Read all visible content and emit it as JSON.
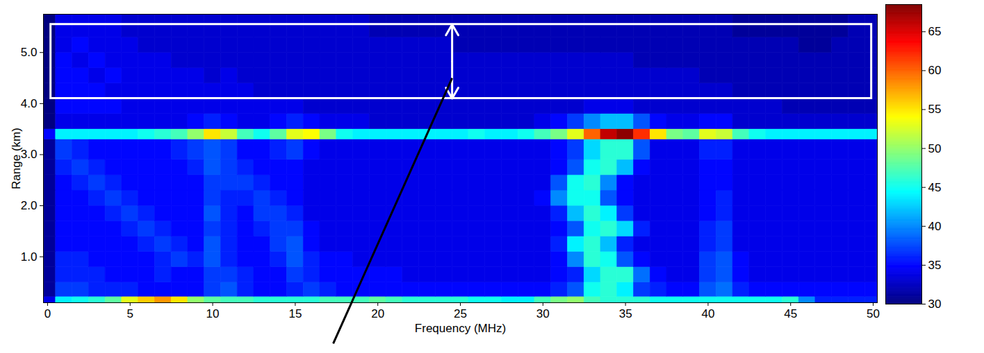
{
  "chart_data": {
    "type": "heatmap",
    "x_label": "Frequency (MHz)",
    "y_label": "Range (km)",
    "xlim": [
      -0.25,
      50.25
    ],
    "xticks": [
      0,
      5,
      10,
      15,
      20,
      25,
      30,
      35,
      40,
      45,
      50
    ],
    "ylim": [
      0.1,
      5.75
    ],
    "yticks": [
      1,
      2,
      3,
      4,
      5
    ],
    "x": [
      0,
      1,
      2,
      3,
      4,
      5,
      6,
      7,
      8,
      9,
      10,
      11,
      12,
      13,
      14,
      15,
      16,
      17,
      18,
      19,
      20,
      21,
      22,
      23,
      24,
      25,
      26,
      27,
      28,
      29,
      30,
      31,
      32,
      33,
      34,
      35,
      36,
      37,
      38,
      39,
      40,
      41,
      42,
      43,
      44,
      45,
      46,
      47,
      48,
      49,
      50
    ],
    "y_bins": [
      0.1,
      0.22,
      0.5,
      0.8,
      1.1,
      1.4,
      1.7,
      2.0,
      2.3,
      2.6,
      2.9,
      3.3,
      3.5,
      3.8,
      4.1,
      4.4,
      4.7,
      5.0,
      5.3,
      5.75
    ],
    "cells": [
      [
        34,
        44,
        45,
        46,
        48,
        53,
        56,
        58,
        55,
        50,
        48,
        47,
        47,
        46,
        46,
        46,
        46,
        47,
        47,
        47,
        48,
        47,
        46,
        46,
        46,
        46,
        45,
        45,
        44,
        44,
        47,
        49,
        50,
        47,
        46,
        46,
        46,
        45,
        45,
        45,
        45,
        45,
        45,
        45,
        45,
        46,
        40,
        36,
        36,
        36,
        36
      ],
      [
        31,
        37,
        37,
        36,
        36,
        36,
        35,
        35,
        35,
        35,
        37,
        38,
        36,
        35,
        35,
        36,
        37,
        36,
        35,
        35,
        35,
        35,
        35,
        35,
        35,
        35,
        35,
        35,
        35,
        35,
        35,
        36,
        38,
        45,
        46,
        44,
        37,
        36,
        35,
        35,
        38,
        39,
        36,
        35,
        35,
        35,
        35,
        35,
        35,
        35,
        35
      ],
      [
        31,
        36,
        36,
        36,
        35,
        35,
        35,
        36,
        35,
        35,
        37,
        37,
        36,
        35,
        35,
        37,
        36,
        35,
        35,
        35,
        35,
        35,
        34,
        34,
        34,
        34,
        34,
        34,
        34,
        34,
        34,
        35,
        36,
        43,
        46,
        46,
        39,
        35,
        34,
        34,
        37,
        38,
        35,
        34,
        34,
        34,
        34,
        34,
        34,
        34,
        34
      ],
      [
        31,
        36,
        36,
        35,
        35,
        35,
        35,
        36,
        37,
        36,
        38,
        36,
        35,
        35,
        36,
        38,
        36,
        35,
        35,
        34,
        34,
        34,
        34,
        34,
        34,
        34,
        34,
        34,
        34,
        34,
        34,
        35,
        40,
        46,
        45,
        38,
        35,
        34,
        34,
        34,
        37,
        38,
        35,
        34,
        34,
        34,
        34,
        34,
        34,
        34,
        34
      ],
      [
        31,
        35,
        35,
        35,
        35,
        35,
        36,
        37,
        36,
        35,
        38,
        36,
        35,
        35,
        37,
        38,
        35,
        34,
        34,
        34,
        34,
        34,
        34,
        34,
        34,
        34,
        34,
        34,
        34,
        34,
        34,
        36,
        44,
        46,
        42,
        36,
        34,
        34,
        34,
        34,
        36,
        37,
        34,
        34,
        34,
        34,
        34,
        34,
        34,
        34,
        34
      ],
      [
        31,
        35,
        35,
        35,
        35,
        36,
        37,
        36,
        35,
        35,
        37,
        36,
        35,
        36,
        37,
        37,
        35,
        34,
        34,
        34,
        34,
        34,
        34,
        34,
        34,
        34,
        34,
        34,
        34,
        34,
        34,
        35,
        38,
        45,
        46,
        43,
        36,
        34,
        34,
        34,
        36,
        37,
        34,
        34,
        34,
        34,
        34,
        34,
        34,
        34,
        34
      ],
      [
        31,
        35,
        35,
        35,
        36,
        37,
        36,
        35,
        35,
        35,
        38,
        36,
        35,
        37,
        37,
        36,
        34,
        34,
        34,
        34,
        34,
        34,
        34,
        34,
        34,
        34,
        34,
        34,
        34,
        34,
        34,
        36,
        42,
        46,
        44,
        37,
        34,
        34,
        34,
        34,
        35,
        36,
        34,
        34,
        34,
        34,
        34,
        34,
        34,
        34,
        34
      ],
      [
        31,
        35,
        35,
        36,
        37,
        36,
        35,
        35,
        35,
        35,
        37,
        36,
        36,
        37,
        36,
        35,
        34,
        34,
        34,
        34,
        34,
        34,
        34,
        34,
        34,
        34,
        34,
        34,
        34,
        34,
        35,
        40,
        45,
        45,
        38,
        35,
        34,
        34,
        34,
        34,
        35,
        36,
        34,
        34,
        34,
        34,
        34,
        34,
        34,
        34,
        34
      ],
      [
        31,
        35,
        36,
        37,
        36,
        35,
        35,
        35,
        35,
        35,
        37,
        37,
        37,
        36,
        35,
        35,
        34,
        34,
        34,
        34,
        34,
        34,
        34,
        34,
        34,
        34,
        34,
        34,
        34,
        34,
        34,
        38,
        45,
        46,
        40,
        35,
        34,
        34,
        34,
        34,
        35,
        35,
        34,
        34,
        34,
        34,
        34,
        34,
        34,
        34,
        34
      ],
      [
        31,
        36,
        37,
        36,
        35,
        35,
        35,
        35,
        35,
        36,
        38,
        37,
        36,
        35,
        35,
        35,
        34,
        34,
        34,
        34,
        34,
        34,
        34,
        34,
        34,
        34,
        34,
        34,
        34,
        34,
        34,
        35,
        38,
        45,
        46,
        42,
        35,
        34,
        34,
        34,
        35,
        35,
        34,
        34,
        34,
        34,
        34,
        34,
        34,
        34,
        34
      ],
      [
        31,
        37,
        36,
        35,
        35,
        35,
        35,
        35,
        36,
        37,
        38,
        37,
        35,
        35,
        36,
        37,
        35,
        34,
        34,
        34,
        34,
        34,
        34,
        34,
        34,
        34,
        34,
        34,
        34,
        34,
        34,
        35,
        37,
        43,
        46,
        46,
        38,
        34,
        34,
        34,
        36,
        36,
        34,
        34,
        34,
        34,
        34,
        34,
        34,
        34,
        34
      ],
      [
        35,
        44,
        44,
        44,
        44,
        44,
        45,
        46,
        47,
        50,
        55,
        52,
        47,
        45,
        48,
        53,
        54,
        49,
        45,
        44,
        44,
        44,
        44,
        44,
        44,
        44,
        45,
        44,
        44,
        45,
        47,
        49,
        53,
        60,
        66,
        68,
        62,
        55,
        49,
        48,
        53,
        52,
        47,
        45,
        44,
        44,
        44,
        44,
        44,
        44,
        44
      ],
      [
        30,
        34,
        34,
        34,
        34,
        34,
        34,
        34,
        34,
        35,
        36,
        35,
        34,
        34,
        35,
        36,
        35,
        34,
        34,
        34,
        33,
        33,
        33,
        33,
        33,
        33,
        33,
        33,
        33,
        33,
        34,
        35,
        37,
        40,
        42,
        42,
        38,
        35,
        34,
        34,
        35,
        35,
        33,
        33,
        33,
        33,
        33,
        33,
        33,
        33,
        33
      ],
      [
        30,
        35,
        35,
        35,
        35,
        34,
        34,
        34,
        34,
        34,
        34,
        34,
        34,
        34,
        34,
        34,
        33,
        33,
        33,
        33,
        33,
        33,
        33,
        33,
        33,
        33,
        33,
        33,
        33,
        33,
        33,
        33,
        33,
        34,
        34,
        34,
        33,
        33,
        33,
        33,
        33,
        33,
        33,
        33,
        33,
        32,
        32,
        32,
        32,
        32,
        32
      ],
      [
        30,
        35,
        35,
        35,
        34,
        34,
        34,
        34,
        34,
        34,
        34,
        34,
        34,
        33,
        33,
        33,
        33,
        33,
        33,
        33,
        33,
        33,
        33,
        33,
        33,
        33,
        33,
        33,
        33,
        33,
        33,
        33,
        33,
        33,
        33,
        33,
        33,
        33,
        33,
        33,
        33,
        33,
        32,
        32,
        32,
        32,
        32,
        32,
        32,
        32,
        32
      ],
      [
        30,
        35,
        35,
        34,
        35,
        34,
        34,
        34,
        34,
        34,
        33,
        34,
        33,
        33,
        33,
        33,
        33,
        33,
        33,
        33,
        33,
        33,
        33,
        33,
        33,
        33,
        33,
        33,
        33,
        33,
        33,
        33,
        33,
        33,
        33,
        33,
        33,
        33,
        33,
        33,
        32,
        32,
        32,
        32,
        32,
        32,
        32,
        32,
        32,
        32,
        32
      ],
      [
        30,
        35,
        34,
        35,
        34,
        34,
        34,
        34,
        33,
        33,
        33,
        33,
        33,
        33,
        33,
        33,
        33,
        33,
        33,
        33,
        33,
        33,
        33,
        33,
        33,
        33,
        33,
        33,
        33,
        33,
        33,
        33,
        33,
        33,
        33,
        33,
        32,
        32,
        32,
        32,
        32,
        32,
        32,
        32,
        32,
        32,
        32,
        32,
        32,
        32,
        32
      ],
      [
        30,
        34,
        35,
        34,
        34,
        34,
        33,
        33,
        33,
        33,
        33,
        33,
        33,
        33,
        33,
        33,
        33,
        33,
        33,
        33,
        33,
        33,
        33,
        33,
        33,
        32,
        32,
        32,
        32,
        32,
        32,
        32,
        32,
        32,
        32,
        32,
        32,
        32,
        32,
        32,
        32,
        32,
        32,
        32,
        32,
        32,
        31,
        31,
        32,
        32,
        32
      ],
      [
        30,
        34,
        34,
        34,
        34,
        33,
        33,
        33,
        33,
        33,
        33,
        33,
        33,
        33,
        33,
        33,
        33,
        33,
        33,
        33,
        32,
        32,
        32,
        32,
        32,
        32,
        32,
        32,
        32,
        32,
        32,
        32,
        32,
        32,
        32,
        32,
        32,
        32,
        32,
        32,
        32,
        32,
        31,
        31,
        31,
        31,
        31,
        31,
        31,
        32,
        32
      ]
    ],
    "colorbar": {
      "range": [
        30,
        68.5
      ],
      "ticks": [
        30,
        35,
        40,
        45,
        50,
        55,
        60,
        65
      ]
    },
    "region": {
      "x": [
        0.2,
        49.9
      ],
      "y": [
        4.1,
        5.55
      ],
      "arrow_x": 24.5,
      "leader": [
        [
          24.5,
          4.5
        ],
        [
          17.3,
          -0.7
        ]
      ]
    }
  }
}
